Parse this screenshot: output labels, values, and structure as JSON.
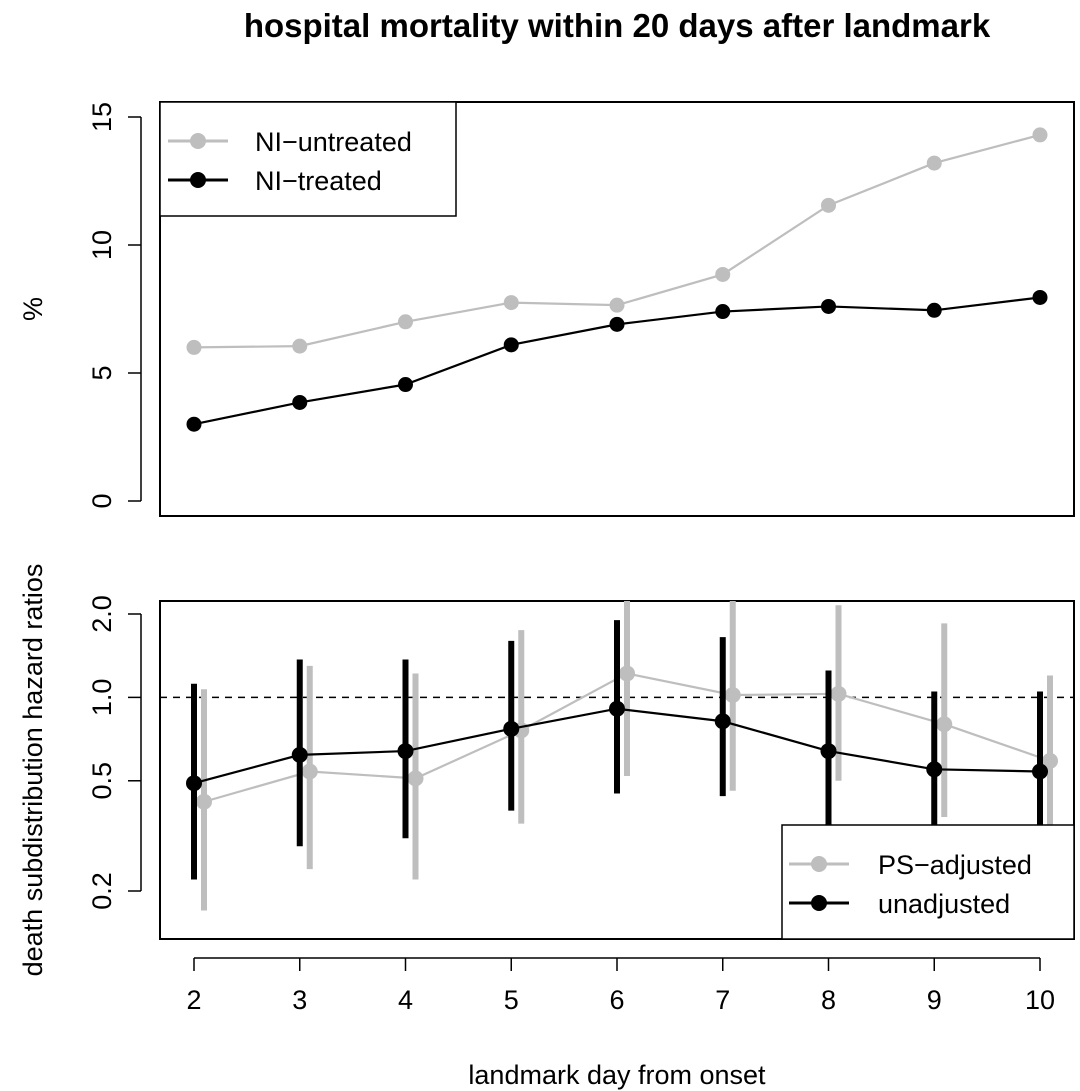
{
  "title": "hospital mortality within 20 days after landmark",
  "xlabel": "landmark day from onset",
  "colors": {
    "grey": "#bebebe",
    "black": "#000000"
  },
  "chart_data": [
    {
      "type": "line",
      "panel": "top",
      "ylabel": "%",
      "x": [
        2,
        3,
        4,
        5,
        6,
        7,
        8,
        9,
        10
      ],
      "xlim": [
        2,
        10
      ],
      "ylim": [
        0,
        15
      ],
      "yticks": [
        0,
        5,
        10,
        15
      ],
      "legend_position": "top-left",
      "series": [
        {
          "name": "NI−untreated",
          "color": "#bebebe",
          "values": [
            6.0,
            6.05,
            7.0,
            7.75,
            7.65,
            8.85,
            11.55,
            13.2,
            14.3
          ]
        },
        {
          "name": "NI−treated",
          "color": "#000000",
          "values": [
            3.0,
            3.85,
            4.55,
            6.1,
            6.9,
            7.4,
            7.6,
            7.45,
            7.95
          ]
        }
      ]
    },
    {
      "type": "line",
      "panel": "bottom",
      "ylabel": "death subdistribution hazard ratios",
      "yscale": "log",
      "x": [
        2,
        3,
        4,
        5,
        6,
        7,
        8,
        9,
        10
      ],
      "ylim": [
        0.15,
        2.3
      ],
      "yticks": [
        0.2,
        0.5,
        1.0,
        2.0
      ],
      "ytick_labels": [
        "0.2",
        "0.5",
        "1.0",
        "2.0"
      ],
      "reference_line": 1.0,
      "legend_position": "bottom-right",
      "series": [
        {
          "name": "PS−adjusted",
          "color": "#bebebe",
          "values": [
            0.42,
            0.54,
            0.51,
            0.76,
            1.22,
            1.02,
            1.03,
            0.8,
            0.59
          ],
          "lower": [
            0.17,
            0.24,
            0.22,
            0.35,
            0.52,
            0.46,
            0.5,
            0.37,
            0.28
          ],
          "upper": [
            1.07,
            1.3,
            1.22,
            1.75,
            2.3,
            2.3,
            2.15,
            1.85,
            1.2
          ]
        },
        {
          "name": "unadjusted",
          "color": "#000000",
          "values": [
            0.49,
            0.62,
            0.64,
            0.77,
            0.91,
            0.82,
            0.64,
            0.55,
            0.54
          ],
          "lower": [
            0.22,
            0.29,
            0.31,
            0.39,
            0.45,
            0.44,
            0.33,
            0.28,
            0.28
          ],
          "upper": [
            1.12,
            1.37,
            1.37,
            1.6,
            1.9,
            1.65,
            1.25,
            1.05,
            1.05
          ]
        }
      ]
    }
  ]
}
